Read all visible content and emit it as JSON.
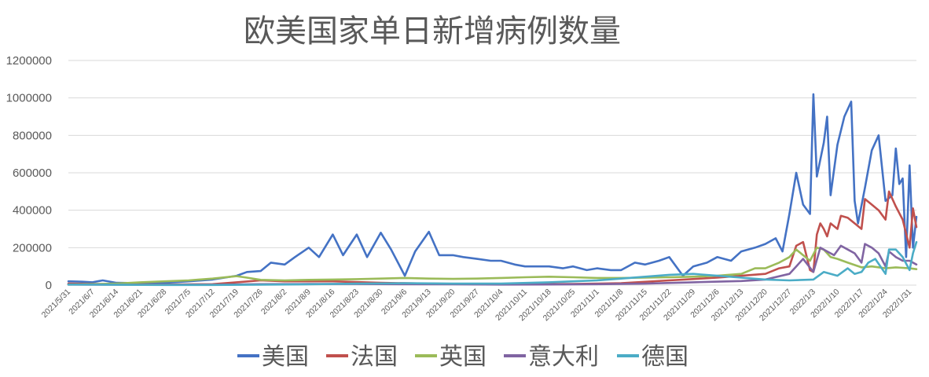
{
  "chart_data": {
    "type": "line",
    "title": "欧美国家单日新增病例数量",
    "xlabel": "",
    "ylabel": "",
    "ylim": [
      0,
      1200000
    ],
    "yticks": [
      0,
      200000,
      400000,
      600000,
      800000,
      1000000,
      1200000
    ],
    "ytick_labels": [
      "0",
      "200000",
      "400000",
      "600000",
      "800000",
      "1000000",
      "1200000"
    ],
    "xrange": [
      "2021/5/31",
      "2022/2/2"
    ],
    "xtick_labels": [
      "2021/5/31",
      "2021/6/7",
      "2021/6/14",
      "2021/6/21",
      "2021/6/28",
      "2021/7/5",
      "2021/7/12",
      "2021/7/19",
      "2021/7/26",
      "2021/8/2",
      "2021/8/9",
      "2021/8/16",
      "2021/8/23",
      "2021/8/30",
      "2021/9/6",
      "2021/9/13",
      "2021/9/20",
      "2021/9/27",
      "2021/10/4",
      "2021/10/11",
      "2021/10/18",
      "2021/10/25",
      "2021/11/1",
      "2021/11/8",
      "2021/11/15",
      "2021/11/22",
      "2021/11/29",
      "2021/12/6",
      "2021/12/13",
      "2021/12/20",
      "2021/12/27",
      "2022/1/3",
      "2022/1/10",
      "2022/1/17",
      "2022/1/24",
      "2022/1/31"
    ],
    "grid": true,
    "legend_position": "bottom",
    "series": [
      {
        "name": "美国",
        "color": "#4472c4",
        "points": [
          [
            "2021/5/31",
            20000
          ],
          [
            "2021/6/4",
            18000
          ],
          [
            "2021/6/7",
            15000
          ],
          [
            "2021/6/10",
            25000
          ],
          [
            "2021/6/14",
            12000
          ],
          [
            "2021/6/21",
            10000
          ],
          [
            "2021/6/28",
            12000
          ],
          [
            "2021/7/5",
            20000
          ],
          [
            "2021/7/12",
            30000
          ],
          [
            "2021/7/19",
            50000
          ],
          [
            "2021/7/22",
            70000
          ],
          [
            "2021/7/26",
            75000
          ],
          [
            "2021/7/29",
            120000
          ],
          [
            "2021/8/2",
            110000
          ],
          [
            "2021/8/5",
            150000
          ],
          [
            "2021/8/9",
            200000
          ],
          [
            "2021/8/12",
            150000
          ],
          [
            "2021/8/16",
            270000
          ],
          [
            "2021/8/19",
            160000
          ],
          [
            "2021/8/23",
            270000
          ],
          [
            "2021/8/26",
            150000
          ],
          [
            "2021/8/30",
            280000
          ],
          [
            "2021/9/2",
            190000
          ],
          [
            "2021/9/6",
            50000
          ],
          [
            "2021/9/9",
            180000
          ],
          [
            "2021/9/13",
            285000
          ],
          [
            "2021/9/16",
            160000
          ],
          [
            "2021/9/20",
            160000
          ],
          [
            "2021/9/23",
            150000
          ],
          [
            "2021/9/27",
            140000
          ],
          [
            "2021/10/1",
            130000
          ],
          [
            "2021/10/4",
            130000
          ],
          [
            "2021/10/8",
            110000
          ],
          [
            "2021/10/11",
            100000
          ],
          [
            "2021/10/15",
            100000
          ],
          [
            "2021/10/18",
            100000
          ],
          [
            "2021/10/22",
            90000
          ],
          [
            "2021/10/25",
            100000
          ],
          [
            "2021/10/29",
            80000
          ],
          [
            "2021/11/1",
            90000
          ],
          [
            "2021/11/5",
            80000
          ],
          [
            "2021/11/8",
            80000
          ],
          [
            "2021/11/12",
            120000
          ],
          [
            "2021/11/15",
            110000
          ],
          [
            "2021/11/19",
            130000
          ],
          [
            "2021/11/22",
            150000
          ],
          [
            "2021/11/26",
            50000
          ],
          [
            "2021/11/29",
            100000
          ],
          [
            "2021/12/3",
            120000
          ],
          [
            "2021/12/6",
            150000
          ],
          [
            "2021/12/10",
            130000
          ],
          [
            "2021/12/13",
            180000
          ],
          [
            "2021/12/17",
            200000
          ],
          [
            "2021/12/20",
            220000
          ],
          [
            "2021/12/23",
            250000
          ],
          [
            "2021/12/25",
            180000
          ],
          [
            "2021/12/27",
            380000
          ],
          [
            "2021/12/29",
            600000
          ],
          [
            "2021/12/31",
            430000
          ],
          [
            "2022/1/2",
            380000
          ],
          [
            "2022/1/3",
            1020000
          ],
          [
            "2022/1/4",
            580000
          ],
          [
            "2022/1/6",
            760000
          ],
          [
            "2022/1/7",
            900000
          ],
          [
            "2022/1/8",
            480000
          ],
          [
            "2022/1/10",
            750000
          ],
          [
            "2022/1/12",
            900000
          ],
          [
            "2022/1/14",
            980000
          ],
          [
            "2022/1/15",
            450000
          ],
          [
            "2022/1/16",
            330000
          ],
          [
            "2022/1/18",
            520000
          ],
          [
            "2022/1/20",
            720000
          ],
          [
            "2022/1/22",
            800000
          ],
          [
            "2022/1/24",
            450000
          ],
          [
            "2022/1/26",
            480000
          ],
          [
            "2022/1/27",
            730000
          ],
          [
            "2022/1/28",
            540000
          ],
          [
            "2022/1/29",
            570000
          ],
          [
            "2022/1/30",
            150000
          ],
          [
            "2022/1/31",
            640000
          ],
          [
            "2022/2/1",
            200000
          ],
          [
            "2022/2/2",
            365000
          ]
        ]
      },
      {
        "name": "法国",
        "color": "#c0504d",
        "points": [
          [
            "2021/5/31",
            8000
          ],
          [
            "2021/6/14",
            4000
          ],
          [
            "2021/6/28",
            3000
          ],
          [
            "2021/7/12",
            5000
          ],
          [
            "2021/7/19",
            15000
          ],
          [
            "2021/7/26",
            25000
          ],
          [
            "2021/8/2",
            20000
          ],
          [
            "2021/8/16",
            20000
          ],
          [
            "2021/8/30",
            12000
          ],
          [
            "2021/9/13",
            8000
          ],
          [
            "2021/9/27",
            5000
          ],
          [
            "2021/10/11",
            5000
          ],
          [
            "2021/10/25",
            6000
          ],
          [
            "2021/11/8",
            10000
          ],
          [
            "2021/11/22",
            25000
          ],
          [
            "2021/12/6",
            40000
          ],
          [
            "2021/12/13",
            50000
          ],
          [
            "2021/12/20",
            60000
          ],
          [
            "2021/12/24",
            90000
          ],
          [
            "2021/12/27",
            100000
          ],
          [
            "2021/12/29",
            210000
          ],
          [
            "2021/12/31",
            230000
          ],
          [
            "2022/1/2",
            80000
          ],
          [
            "2022/1/3",
            70000
          ],
          [
            "2022/1/4",
            270000
          ],
          [
            "2022/1/5",
            330000
          ],
          [
            "2022/1/6",
            300000
          ],
          [
            "2022/1/7",
            260000
          ],
          [
            "2022/1/8",
            330000
          ],
          [
            "2022/1/10",
            300000
          ],
          [
            "2022/1/11",
            370000
          ],
          [
            "2022/1/13",
            360000
          ],
          [
            "2022/1/15",
            330000
          ],
          [
            "2022/1/17",
            300000
          ],
          [
            "2022/1/18",
            460000
          ],
          [
            "2022/1/20",
            430000
          ],
          [
            "2022/1/22",
            400000
          ],
          [
            "2022/1/24",
            350000
          ],
          [
            "2022/1/25",
            500000
          ],
          [
            "2022/1/27",
            420000
          ],
          [
            "2022/1/29",
            350000
          ],
          [
            "2022/1/31",
            200000
          ],
          [
            "2022/2/1",
            410000
          ],
          [
            "2022/2/2",
            310000
          ]
        ]
      },
      {
        "name": "英国",
        "color": "#9bbb59",
        "points": [
          [
            "2021/5/31",
            3000
          ],
          [
            "2021/6/14",
            8000
          ],
          [
            "2021/6/21",
            15000
          ],
          [
            "2021/6/28",
            20000
          ],
          [
            "2021/7/5",
            25000
          ],
          [
            "2021/7/12",
            35000
          ],
          [
            "2021/7/19",
            48000
          ],
          [
            "2021/7/22",
            40000
          ],
          [
            "2021/7/26",
            28000
          ],
          [
            "2021/8/2",
            25000
          ],
          [
            "2021/8/9",
            28000
          ],
          [
            "2021/8/16",
            30000
          ],
          [
            "2021/8/23",
            32000
          ],
          [
            "2021/8/30",
            35000
          ],
          [
            "2021/9/6",
            38000
          ],
          [
            "2021/9/13",
            35000
          ],
          [
            "2021/9/20",
            33000
          ],
          [
            "2021/9/27",
            35000
          ],
          [
            "2021/10/4",
            38000
          ],
          [
            "2021/10/11",
            42000
          ],
          [
            "2021/10/18",
            45000
          ],
          [
            "2021/10/25",
            42000
          ],
          [
            "2021/11/1",
            38000
          ],
          [
            "2021/11/8",
            38000
          ],
          [
            "2021/11/15",
            40000
          ],
          [
            "2021/11/22",
            42000
          ],
          [
            "2021/11/29",
            45000
          ],
          [
            "2021/12/6",
            50000
          ],
          [
            "2021/12/13",
            60000
          ],
          [
            "2021/12/17",
            90000
          ],
          [
            "2021/12/20",
            90000
          ],
          [
            "2021/12/24",
            120000
          ],
          [
            "2021/12/27",
            150000
          ],
          [
            "2021/12/29",
            190000
          ],
          [
            "2021/12/31",
            160000
          ],
          [
            "2022/1/2",
            130000
          ],
          [
            "2022/1/4",
            200000
          ],
          [
            "2022/1/6",
            190000
          ],
          [
            "2022/1/8",
            150000
          ],
          [
            "2022/1/10",
            140000
          ],
          [
            "2022/1/13",
            120000
          ],
          [
            "2022/1/17",
            95000
          ],
          [
            "2022/1/20",
            100000
          ],
          [
            "2022/1/24",
            90000
          ],
          [
            "2022/1/27",
            95000
          ],
          [
            "2022/1/31",
            90000
          ],
          [
            "2022/2/2",
            85000
          ]
        ]
      },
      {
        "name": "意大利",
        "color": "#8064a2",
        "points": [
          [
            "2021/5/31",
            3000
          ],
          [
            "2021/6/14",
            2000
          ],
          [
            "2021/6/28",
            1500
          ],
          [
            "2021/7/12",
            2000
          ],
          [
            "2021/7/26",
            5000
          ],
          [
            "2021/8/9",
            6000
          ],
          [
            "2021/8/23",
            6000
          ],
          [
            "2021/9/6",
            5000
          ],
          [
            "2021/9/20",
            4000
          ],
          [
            "2021/10/4",
            3000
          ],
          [
            "2021/10/18",
            3500
          ],
          [
            "2021/11/1",
            5000
          ],
          [
            "2021/11/15",
            8000
          ],
          [
            "2021/11/29",
            15000
          ],
          [
            "2021/12/13",
            22000
          ],
          [
            "2021/12/20",
            30000
          ],
          [
            "2021/12/27",
            60000
          ],
          [
            "2021/12/29",
            100000
          ],
          [
            "2021/12/31",
            140000
          ],
          [
            "2022/1/3",
            70000
          ],
          [
            "2022/1/5",
            200000
          ],
          [
            "2022/1/7",
            180000
          ],
          [
            "2022/1/9",
            160000
          ],
          [
            "2022/1/11",
            210000
          ],
          [
            "2022/1/13",
            190000
          ],
          [
            "2022/1/15",
            170000
          ],
          [
            "2022/1/17",
            120000
          ],
          [
            "2022/1/18",
            220000
          ],
          [
            "2022/1/20",
            200000
          ],
          [
            "2022/1/22",
            170000
          ],
          [
            "2022/1/24",
            100000
          ],
          [
            "2022/1/25",
            180000
          ],
          [
            "2022/1/27",
            150000
          ],
          [
            "2022/1/29",
            130000
          ],
          [
            "2022/1/31",
            130000
          ],
          [
            "2022/2/2",
            110000
          ]
        ]
      },
      {
        "name": "德国",
        "color": "#4bacc6",
        "points": [
          [
            "2021/5/31",
            3000
          ],
          [
            "2021/6/14",
            1500
          ],
          [
            "2021/6/28",
            800
          ],
          [
            "2021/7/12",
            1000
          ],
          [
            "2021/7/26",
            2000
          ],
          [
            "2021/8/9",
            4000
          ],
          [
            "2021/8/23",
            8000
          ],
          [
            "2021/9/6",
            10000
          ],
          [
            "2021/9/20",
            8000
          ],
          [
            "2021/10/4",
            8000
          ],
          [
            "2021/10/18",
            15000
          ],
          [
            "2021/10/25",
            20000
          ],
          [
            "2021/11/1",
            25000
          ],
          [
            "2021/11/8",
            35000
          ],
          [
            "2021/11/15",
            45000
          ],
          [
            "2021/11/22",
            55000
          ],
          [
            "2021/11/29",
            60000
          ],
          [
            "2021/12/6",
            50000
          ],
          [
            "2021/12/13",
            40000
          ],
          [
            "2021/12/20",
            30000
          ],
          [
            "2021/12/27",
            25000
          ],
          [
            "2022/1/3",
            30000
          ],
          [
            "2022/1/6",
            70000
          ],
          [
            "2022/1/10",
            50000
          ],
          [
            "2022/1/13",
            90000
          ],
          [
            "2022/1/15",
            60000
          ],
          [
            "2022/1/17",
            70000
          ],
          [
            "2022/1/19",
            120000
          ],
          [
            "2022/1/21",
            140000
          ],
          [
            "2022/1/24",
            60000
          ],
          [
            "2022/1/25",
            190000
          ],
          [
            "2022/1/27",
            190000
          ],
          [
            "2022/1/29",
            150000
          ],
          [
            "2022/1/31",
            80000
          ],
          [
            "2022/2/1",
            170000
          ],
          [
            "2022/2/2",
            230000
          ]
        ]
      }
    ]
  }
}
